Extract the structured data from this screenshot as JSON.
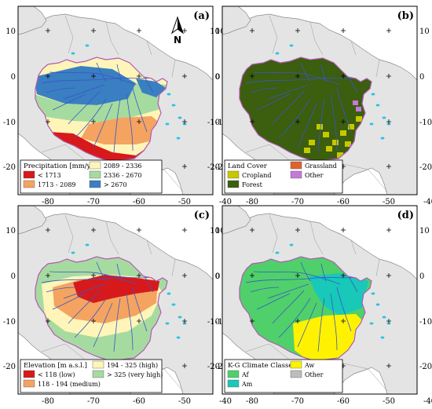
{
  "panels": [
    {
      "id": "a",
      "tag": "(a)",
      "legend_title": "Precipitation [mm/yr]",
      "legend": [
        {
          "label": "< 1713",
          "color": "#d7191c"
        },
        {
          "label": "1713 - 2089",
          "color": "#f4a460"
        },
        {
          "label": "2089 - 2336",
          "color": "#fff5b8"
        },
        {
          "label": "2336 - 2670",
          "color": "#a6dba0"
        },
        {
          "label": "> 2670",
          "color": "#3a7fc1"
        }
      ]
    },
    {
      "id": "b",
      "tag": "(b)",
      "legend_title": "Land Cover",
      "legend": [
        {
          "label": "Cropland",
          "color": "#c8c800"
        },
        {
          "label": "Forest",
          "color": "#3b5e0f"
        },
        {
          "label": "Grassland",
          "color": "#e3612a"
        },
        {
          "label": "Other",
          "color": "#c47ad9"
        }
      ]
    },
    {
      "id": "c",
      "tag": "(c)",
      "legend_title": "Elevation [m a.s.l.]",
      "legend": [
        {
          "label": "< 118 (low)",
          "color": "#d7191c"
        },
        {
          "label": "118 - 194 (medium)",
          "color": "#f4a460"
        },
        {
          "label": "194 - 325 (high)",
          "color": "#fff5b8"
        },
        {
          "label": "> 325 (very high)",
          "color": "#a6dba0"
        }
      ]
    },
    {
      "id": "d",
      "tag": "(d)",
      "legend_title": "K-G Climate Classes",
      "legend": [
        {
          "label": "Af",
          "color": "#4fd06a"
        },
        {
          "label": "Am",
          "color": "#18c8b8"
        },
        {
          "label": "Aw",
          "color": "#fff200"
        },
        {
          "label": "Other",
          "color": "#bdbdbd"
        }
      ]
    }
  ],
  "axes": {
    "lon_ticks": [
      "-80",
      "-70",
      "-60",
      "-50",
      "-40"
    ],
    "lat_ticks": [
      "10",
      "0",
      "-10",
      "-20"
    ]
  },
  "north_arrow": "N",
  "colors": {
    "land": "#e4e4e4",
    "ocean": "#ffffff",
    "rivers": "#3b55c8",
    "lakes": "#27c3e6",
    "basin_outline": "#b25ab5"
  }
}
